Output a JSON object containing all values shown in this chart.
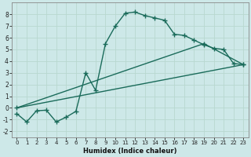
{
  "line1_x": [
    0,
    1,
    2,
    3,
    4,
    5,
    6,
    7,
    8,
    9,
    10,
    11,
    12,
    13,
    14,
    15,
    16,
    17,
    18,
    19,
    20,
    21,
    22,
    23
  ],
  "line1_y": [
    -0.5,
    -1.2,
    -0.25,
    -0.2,
    -1.2,
    -0.8,
    -0.3,
    3.0,
    1.5,
    5.5,
    7.0,
    8.1,
    8.2,
    7.9,
    7.7,
    7.5,
    6.3,
    6.2,
    5.8,
    5.4,
    5.1,
    5.0,
    3.8,
    3.7
  ],
  "line2_x": [
    0,
    23
  ],
  "line2_y": [
    0.0,
    3.7
  ],
  "line3_x": [
    0,
    19,
    23
  ],
  "line3_y": [
    0.0,
    5.5,
    3.7
  ],
  "line_color": "#1a6b5a",
  "bg_color": "#cde8e8",
  "grid_color": "#b8d8d0",
  "xlabel": "Humidex (Indice chaleur)",
  "xlim": [
    -0.5,
    23.5
  ],
  "ylim": [
    -2.5,
    9.0
  ],
  "xticks": [
    0,
    1,
    2,
    3,
    4,
    5,
    6,
    7,
    8,
    9,
    10,
    11,
    12,
    13,
    14,
    15,
    16,
    17,
    18,
    19,
    20,
    21,
    22,
    23
  ],
  "yticks": [
    -2,
    -1,
    0,
    1,
    2,
    3,
    4,
    5,
    6,
    7,
    8
  ],
  "marker": "+",
  "markersize": 4.0,
  "linewidth": 1.0,
  "xlabel_fontsize": 6.0,
  "tick_fontsize_x": 5.0,
  "tick_fontsize_y": 5.5
}
